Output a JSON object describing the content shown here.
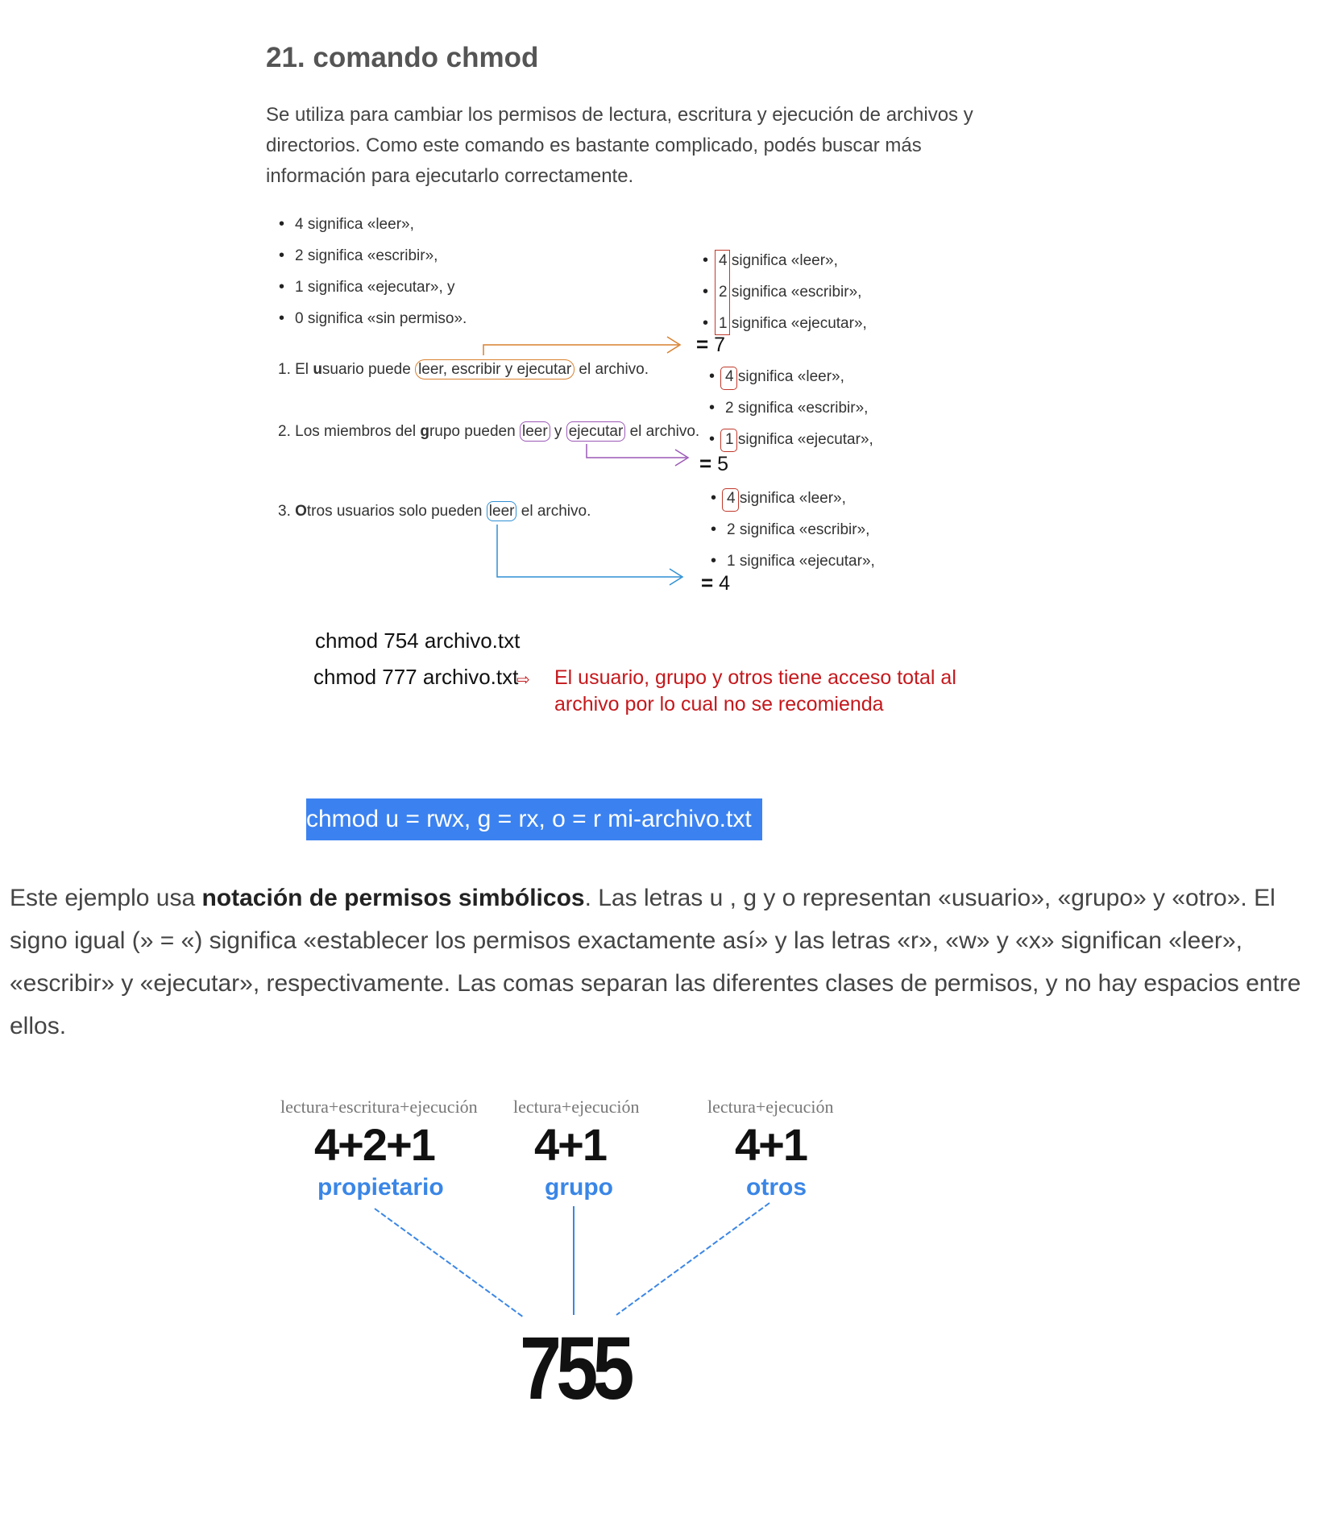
{
  "heading": "21. comando chmod",
  "intro": "Se utiliza para cambiar los permisos de lectura, escritura y ejecución de archivos y directorios. Como este comando es bastante complicado, podés buscar más información para ejecutarlo correctamente.",
  "perm_list": [
    "4 significa «leer»,",
    "2 significa «escribir»,",
    "1 significa «ejecutar», y",
    "0 significa «sin permiso»."
  ],
  "steps": {
    "s1": {
      "pre": "1. El ",
      "key": "u",
      "mid": "suario puede ",
      "boxed": "leer, escribir y ejecutar",
      "post": " el archivo."
    },
    "s2": {
      "pre": "2. Los miembros del ",
      "key": "g",
      "mid": "rupo pueden ",
      "boxed1": "leer",
      "and": " y ",
      "boxed2": "ejecutar",
      "post": " el archivo."
    },
    "s3": {
      "pre": "3. ",
      "key": "O",
      "mid": "tros usuarios solo pueden ",
      "boxed": "leer",
      "post": " el archivo."
    }
  },
  "groups": {
    "user": {
      "d1": "4",
      "t1": "significa «leer»,",
      "d2": "2",
      "t2": "significa «escribir»,",
      "d3": "1",
      "t3": "significa «ejecutar»,",
      "eq": "=",
      "sum": "7"
    },
    "group": {
      "d1": "4",
      "t1": "significa «leer»,",
      "d2": "2",
      "t2": "significa «escribir»,",
      "d3": "1",
      "t3": "significa «ejecutar»,",
      "eq": "=",
      "sum": "5"
    },
    "other": {
      "d1": "4",
      "t1": "significa «leer»,",
      "d2": "2",
      "t2": "significa «escribir»,",
      "d3": "1",
      "t3": "significa «ejecutar»,",
      "eq": "=",
      "sum": "4"
    }
  },
  "colors": {
    "user": "#d9802e",
    "group": "#9b59b6",
    "other": "#2f8fd3",
    "boxes": "#c0392b",
    "warning": "#c4181c",
    "highlight": "#3b82f0",
    "diagram": "#3a86e6"
  },
  "cmd1": "chmod 754 archivo.txt",
  "cmd2": "chmod 777 archivo.txt",
  "arrow_glyph": "⇨",
  "warning": "El usuario, grupo y otros tiene acceso total al archivo por lo cual no se recomienda",
  "symbolic_cmd": "chmod u = rwx, g = rx, o = r mi-archivo.txt",
  "para": {
    "a": "Este ejemplo usa ",
    "b": "notación de permisos simbólicos",
    "c": ". Las letras u , g y o representan «usuario», «grupo» y «otro». El signo igual (» = «) significa «establecer los permisos exactamente así» y las letras «r», «w» y «x» significan «leer», «escribir» y «ejecutar», respectivamente. Las comas separan las diferentes clases de permisos, y no hay espacios entre ellos."
  },
  "diagram": {
    "owner": {
      "label": "lectura+escritura+ejecución",
      "sum": "4+2+1",
      "name": "propietario"
    },
    "group": {
      "label": "lectura+ejecución",
      "sum": "4+1",
      "name": "grupo"
    },
    "others": {
      "label": "lectura+ejecución",
      "sum": "4+1",
      "name": "otros"
    },
    "result": "755"
  }
}
